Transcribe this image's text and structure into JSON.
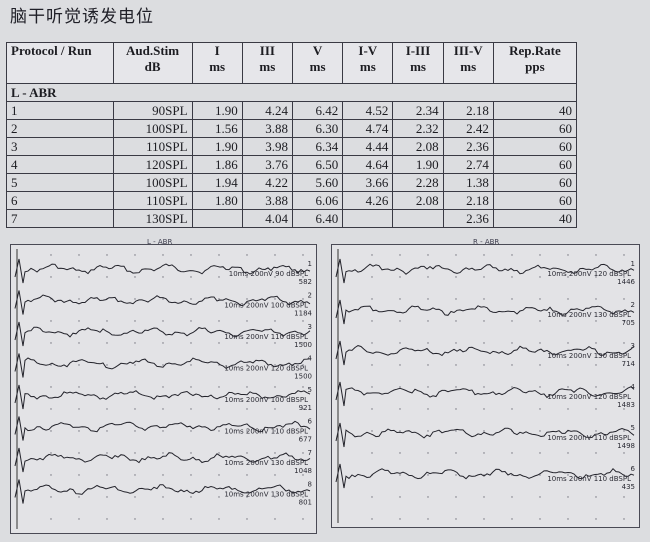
{
  "title": "脑干听觉诱发电位",
  "table": {
    "headers": [
      {
        "line1": "Protocol / Run",
        "line2": ""
      },
      {
        "line1": "Aud.Stim",
        "line2": "dB"
      },
      {
        "line1": "I",
        "line2": "ms"
      },
      {
        "line1": "III",
        "line2": "ms"
      },
      {
        "line1": "V",
        "line2": "ms"
      },
      {
        "line1": "I-V",
        "line2": "ms"
      },
      {
        "line1": "I-III",
        "line2": "ms"
      },
      {
        "line1": "III-V",
        "line2": "ms"
      },
      {
        "line1": "Rep.Rate",
        "line2": "pps"
      }
    ],
    "section": "L - ABR",
    "rows": [
      {
        "run": "1",
        "stim": "90SPL",
        "i": "1.90",
        "iii": "4.24",
        "v": "6.42",
        "iv": "4.52",
        "iiii": "2.34",
        "iiiv": "2.18",
        "rate": "40"
      },
      {
        "run": "2",
        "stim": "100SPL",
        "i": "1.56",
        "iii": "3.88",
        "v": "6.30",
        "iv": "4.74",
        "iiii": "2.32",
        "iiiv": "2.42",
        "rate": "60"
      },
      {
        "run": "3",
        "stim": "110SPL",
        "i": "1.90",
        "iii": "3.98",
        "v": "6.34",
        "iv": "4.44",
        "iiii": "2.08",
        "iiiv": "2.36",
        "rate": "60"
      },
      {
        "run": "4",
        "stim": "120SPL",
        "i": "1.86",
        "iii": "3.76",
        "v": "6.50",
        "iv": "4.64",
        "iiii": "1.90",
        "iiiv": "2.74",
        "rate": "60"
      },
      {
        "run": "5",
        "stim": "100SPL",
        "i": "1.94",
        "iii": "4.22",
        "v": "5.60",
        "iv": "3.66",
        "iiii": "2.28",
        "iiiv": "1.38",
        "rate": "60"
      },
      {
        "run": "6",
        "stim": "110SPL",
        "i": "1.80",
        "iii": "3.88",
        "v": "6.06",
        "iv": "4.26",
        "iiii": "2.08",
        "iiiv": "2.18",
        "rate": "60"
      },
      {
        "run": "7",
        "stim": "130SPL",
        "i": "",
        "iii": "4.04",
        "v": "6.40",
        "iv": "",
        "iiii": "",
        "iiiv": "2.36",
        "rate": "40"
      }
    ]
  },
  "waveforms": {
    "left": {
      "label": "L - ABR",
      "traces": [
        {
          "num": "1",
          "caption": "10ms 200nV 90 dBSPL",
          "count": "582"
        },
        {
          "num": "2",
          "caption": "10ms 200nV 100 dBSPL",
          "count": "1184"
        },
        {
          "num": "3",
          "caption": "10ms 200nV 110 dBSPL",
          "count": "1500"
        },
        {
          "num": "4",
          "caption": "10ms 200nV 120 dBSPL",
          "count": "1500"
        },
        {
          "num": "5",
          "caption": "10ms 200nV 100 dBSPL",
          "count": "921"
        },
        {
          "num": "6",
          "caption": "10ms 200nV 110 dBSPL",
          "count": "677"
        },
        {
          "num": "7",
          "caption": "10ms 200nV 130 dBSPL",
          "count": "1048"
        },
        {
          "num": "8",
          "caption": "10ms 200nV 130 dBSPL",
          "count": "801"
        }
      ]
    },
    "right": {
      "label": "R - ABR",
      "traces": [
        {
          "num": "1",
          "caption": "10ms 200nV 120 dBSPL",
          "count": "1446"
        },
        {
          "num": "2",
          "caption": "10ms 200nV 130 dBSPL",
          "count": "705"
        },
        {
          "num": "3",
          "caption": "10ms 200nV 130 dBSPL",
          "count": "714"
        },
        {
          "num": "4",
          "caption": "10ms 200nV 120 dBSPL",
          "count": "1483"
        },
        {
          "num": "5",
          "caption": "10ms 200nV 110 dBSPL",
          "count": "1498"
        },
        {
          "num": "6",
          "caption": "10ms 200nV 110 dBSPL",
          "count": "435"
        }
      ]
    }
  }
}
